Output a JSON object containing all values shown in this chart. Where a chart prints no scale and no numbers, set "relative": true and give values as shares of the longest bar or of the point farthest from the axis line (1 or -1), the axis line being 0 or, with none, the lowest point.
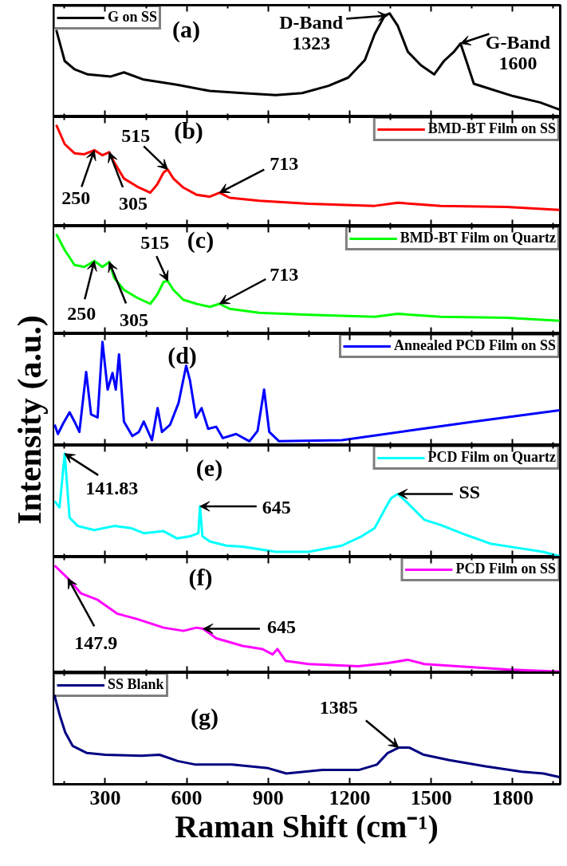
{
  "chart_data": [
    {
      "type": "line",
      "relative": true,
      "xlim": [
        108,
        1975
      ],
      "xticks": [
        300,
        600,
        900,
        1200,
        1500,
        1800
      ],
      "tick_labels": false,
      "legend": "top left",
      "series": [
        {
          "name": "G on SS",
          "color": "#000000",
          "x": [
            120,
            151,
            187,
            236,
            321,
            369,
            442,
            564,
            685,
            806,
            928,
            1025,
            1122,
            1195,
            1256,
            1292,
            1329,
            1347,
            1377,
            1414,
            1462,
            1511,
            1547,
            1584,
            1608,
            1632,
            1657,
            1717,
            1802,
            1900,
            1972
          ],
          "values": [
            0.84,
            0.54,
            0.46,
            0.41,
            0.39,
            0.43,
            0.36,
            0.31,
            0.25,
            0.23,
            0.21,
            0.23,
            0.3,
            0.38,
            0.55,
            0.8,
            0.98,
            1,
            0.88,
            0.63,
            0.5,
            0.41,
            0.54,
            0.63,
            0.71,
            0.52,
            0.32,
            0.27,
            0.2,
            0.14,
            0.07
          ]
        }
      ],
      "annotations": [
        "(a)",
        {
          "text": "D-Band\n1323",
          "x": 1340,
          "y": 0.98
        },
        {
          "text": "G-Band\n1600",
          "x": 1608,
          "y": 0.71
        }
      ]
    },
    {
      "type": "line",
      "relative": true,
      "xlim": [
        108,
        1975
      ],
      "xticks": [
        300,
        600,
        900,
        1200,
        1500,
        1800
      ],
      "tick_labels": false,
      "legend": "top right",
      "series": [
        {
          "name": "BMD-BT Film on SS",
          "color": "#ff0000",
          "x": [
            120,
            151,
            187,
            223,
            260,
            290,
            315,
            333,
            369,
            418,
            466,
            491,
            515,
            530,
            551,
            588,
            636,
            685,
            721,
            758,
            867,
            1049,
            1292,
            1377,
            1535,
            1778,
            1972
          ],
          "values": [
            1,
            0.81,
            0.72,
            0.71,
            0.75,
            0.7,
            0.73,
            0.63,
            0.47,
            0.39,
            0.33,
            0.41,
            0.53,
            0.56,
            0.47,
            0.38,
            0.31,
            0.29,
            0.33,
            0.28,
            0.25,
            0.22,
            0.2,
            0.23,
            0.2,
            0.19,
            0.16
          ]
        }
      ],
      "annotations": [
        "(b)",
        {
          "text": "250",
          "x": 260,
          "y": 0.75
        },
        {
          "text": "305",
          "x": 315,
          "y": 0.73
        },
        {
          "text": "515",
          "x": 530,
          "y": 0.56
        },
        {
          "text": "713",
          "x": 721,
          "y": 0.33
        }
      ]
    },
    {
      "type": "line",
      "relative": true,
      "xlim": [
        108,
        1975
      ],
      "xticks": [
        300,
        600,
        900,
        1200,
        1500,
        1800
      ],
      "tick_labels": false,
      "legend": "top right",
      "series": [
        {
          "name": "BMD-BT Film on Quartz",
          "color": "#00ff00",
          "x": [
            120,
            151,
            187,
            223,
            260,
            290,
            315,
            333,
            369,
            418,
            466,
            491,
            515,
            530,
            551,
            588,
            636,
            685,
            721,
            758,
            867,
            1049,
            1292,
            1377,
            1535,
            1778,
            1972
          ],
          "values": [
            1,
            0.84,
            0.69,
            0.67,
            0.73,
            0.67,
            0.72,
            0.56,
            0.44,
            0.36,
            0.3,
            0.39,
            0.52,
            0.53,
            0.44,
            0.34,
            0.3,
            0.27,
            0.3,
            0.25,
            0.21,
            0.19,
            0.17,
            0.2,
            0.17,
            0.16,
            0.13
          ]
        }
      ],
      "annotations": [
        "(c)",
        {
          "text": "250",
          "x": 260,
          "y": 0.73
        },
        {
          "text": "305",
          "x": 315,
          "y": 0.72
        },
        {
          "text": "515",
          "x": 530,
          "y": 0.53
        },
        {
          "text": "713",
          "x": 721,
          "y": 0.3
        }
      ]
    },
    {
      "type": "line",
      "relative": true,
      "xlim": [
        108,
        1975
      ],
      "xticks": [
        300,
        600,
        900,
        1200,
        1500,
        1800
      ],
      "tick_labels": false,
      "legend": "top right",
      "ylabel": "Intensity (a.u.)",
      "series": [
        {
          "name": "Annealed PCD Film on SS",
          "color": "#0000ff",
          "x": [
            114,
            126,
            145,
            169,
            187,
            205,
            230,
            248,
            272,
            290,
            309,
            327,
            339,
            351,
            369,
            400,
            424,
            442,
            472,
            493,
            509,
            539,
            570,
            598,
            612,
            634,
            655,
            679,
            709,
            733,
            782,
            831,
            861,
            885,
            904,
            940,
            1171,
            1414,
            1657,
            1972
          ],
          "values": [
            0.2,
            0.11,
            0.21,
            0.32,
            0.23,
            0.13,
            0.71,
            0.3,
            0.27,
            1,
            0.54,
            0.7,
            0.54,
            0.88,
            0.23,
            0.09,
            0.13,
            0.23,
            0.05,
            0.36,
            0.13,
            0.2,
            0.41,
            0.77,
            0.63,
            0.27,
            0.36,
            0.16,
            0.18,
            0.07,
            0.11,
            0.04,
            0.14,
            0.54,
            0.13,
            0.04,
            0.05,
            0.14,
            0.23,
            0.34
          ]
        }
      ],
      "annotations": [
        "(d)"
      ]
    },
    {
      "type": "line",
      "relative": true,
      "xlim": [
        108,
        1975
      ],
      "xticks": [
        300,
        600,
        900,
        1200,
        1500,
        1800
      ],
      "tick_labels": false,
      "legend": "top right",
      "series": [
        {
          "name": "PCD Film on Quartz",
          "color": "#00ffff",
          "x": [
            114,
            132,
            151,
            169,
            199,
            260,
            333,
            394,
            442,
            515,
            564,
            612,
            643,
            649,
            658,
            685,
            746,
            806,
            928,
            1049,
            1171,
            1244,
            1292,
            1329,
            1353,
            1377,
            1414,
            1475,
            1535,
            1632,
            1717,
            1838,
            1911,
            1972
          ],
          "values": [
            0.54,
            0.48,
            1,
            0.38,
            0.3,
            0.26,
            0.3,
            0.28,
            0.23,
            0.25,
            0.18,
            0.2,
            0.23,
            0.49,
            0.2,
            0.15,
            0.11,
            0.1,
            0.05,
            0.05,
            0.11,
            0.2,
            0.28,
            0.46,
            0.57,
            0.61,
            0.52,
            0.36,
            0.31,
            0.21,
            0.13,
            0.08,
            0.05,
            0.01
          ]
        }
      ],
      "annotations": [
        "(e)",
        {
          "text": "141.83",
          "x": 151,
          "y": 1
        },
        {
          "text": "645",
          "x": 649,
          "y": 0.49
        },
        {
          "text": "SS",
          "x": 1377,
          "y": 0.61
        }
      ]
    },
    {
      "type": "line",
      "relative": true,
      "xlim": [
        108,
        1975
      ],
      "xticks": [
        300,
        600,
        900,
        1200,
        1500,
        1800
      ],
      "tick_labels": false,
      "legend": "top right",
      "series": [
        {
          "name": "PCD Film on SS",
          "color": "#ff00ff",
          "x": [
            114,
            163,
            211,
            272,
            345,
            418,
            515,
            588,
            636,
            661,
            709,
            806,
            879,
            916,
            934,
            964,
            1049,
            1232,
            1341,
            1414,
            1475,
            1596,
            1778,
            1972
          ],
          "values": [
            1,
            0.88,
            0.74,
            0.68,
            0.55,
            0.5,
            0.42,
            0.39,
            0.42,
            0.41,
            0.32,
            0.25,
            0.22,
            0.17,
            0.22,
            0.11,
            0.08,
            0.06,
            0.09,
            0.12,
            0.08,
            0.06,
            0.03,
            0.01
          ]
        }
      ],
      "annotations": [
        "(f)",
        {
          "text": "147.9",
          "x": 163,
          "y": 0.88
        },
        {
          "text": "645",
          "x": 661,
          "y": 0.41
        }
      ]
    },
    {
      "type": "line",
      "relative": true,
      "xlim": [
        108,
        1975
      ],
      "xticks": [
        300,
        600,
        900,
        1200,
        1500,
        1800
      ],
      "tick_labels": "x",
      "legend": "top left",
      "xlabel": "Raman Shift (cm⁻¹)",
      "series": [
        {
          "name": "SS Blank",
          "color": "#000080",
          "x": [
            113,
            133,
            153,
            180,
            233,
            300,
            433,
            500,
            567,
            633,
            767,
            900,
            967,
            1100,
            1233,
            1300,
            1340,
            1380,
            1420,
            1473,
            1567,
            1700,
            1833,
            1913,
            1972
          ],
          "values": [
            1,
            0.77,
            0.58,
            0.43,
            0.35,
            0.33,
            0.32,
            0.33,
            0.26,
            0.22,
            0.22,
            0.18,
            0.12,
            0.16,
            0.16,
            0.22,
            0.35,
            0.41,
            0.41,
            0.33,
            0.27,
            0.2,
            0.14,
            0.12,
            0.08
          ]
        }
      ],
      "annotations": [
        "(g)",
        {
          "text": "1385",
          "x": 1380,
          "y": 0.41
        }
      ]
    }
  ]
}
